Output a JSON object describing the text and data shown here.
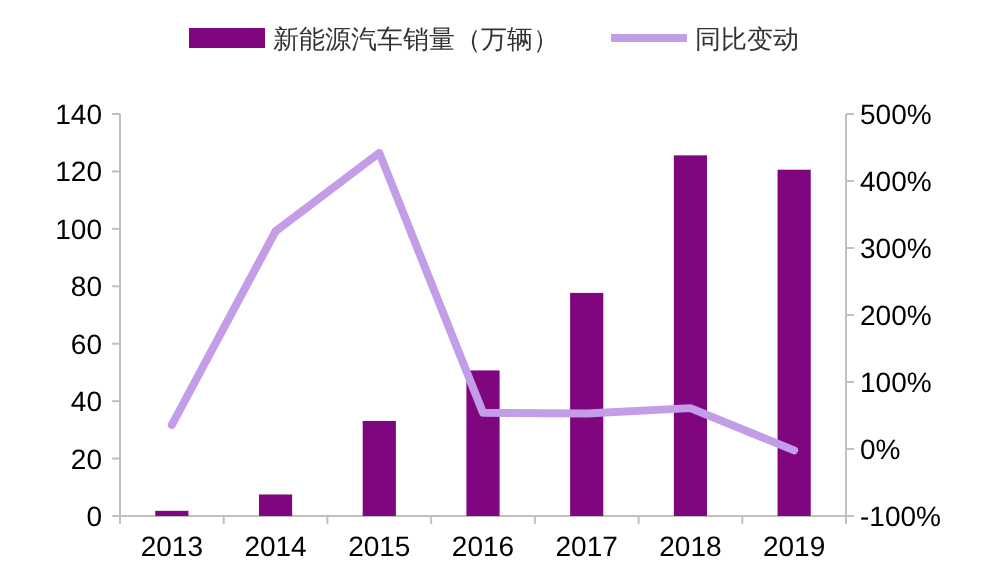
{
  "chart_data": {
    "type": "bar",
    "categories": [
      "2013",
      "2014",
      "2015",
      "2016",
      "2017",
      "2018",
      "2019"
    ],
    "series": [
      {
        "name": "新能源汽车销量（万辆）",
        "color": "#80067f",
        "values": [
          1.8,
          7.5,
          33.1,
          50.7,
          77.7,
          125.6,
          120.6
        ]
      },
      {
        "name": "同比变动",
        "type": "line",
        "axis": "y2",
        "color": "#c49de9",
        "values": [
          36,
          325,
          442,
          54,
          53,
          61,
          -2
        ]
      }
    ],
    "ylim": [
      0,
      140
    ],
    "yticks": [
      0,
      20,
      40,
      60,
      80,
      100,
      120,
      140
    ],
    "y2lim": [
      -100,
      500
    ],
    "y2ticks": [
      {
        "value": -100,
        "label": "-100%"
      },
      {
        "value": 0,
        "label": "0%"
      },
      {
        "value": 100,
        "label": "100%"
      },
      {
        "value": 200,
        "label": "200%"
      },
      {
        "value": 300,
        "label": "300%"
      },
      {
        "value": 400,
        "label": "400%"
      },
      {
        "value": 500,
        "label": "500%"
      }
    ],
    "legend": "top",
    "grid": false
  }
}
